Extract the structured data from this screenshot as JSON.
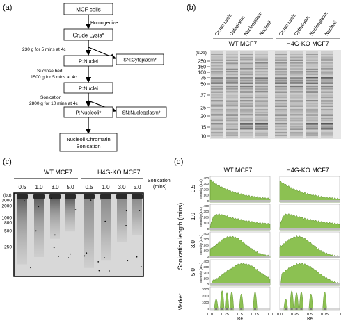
{
  "panel_a": {
    "label": "(a)",
    "boxes": {
      "mcf": "MCF cells",
      "crude": "Crude Lysis*",
      "nuclei1": "P:Nuclei",
      "cytoplasm": "SN:Cytoplasm*",
      "nuclei2": "P:Nuclei",
      "nucleoli": "P:Nucleoli*",
      "nucleoplasm": "SN:Nucleoplasm*",
      "chromatin_line1": "Nucleoli Chromatin",
      "chromatin_line2": "Sonication"
    },
    "steps": {
      "homogenize": "Homogenize",
      "spin1": "230 g for  5 mins at 4c",
      "sucrose": "Sucrose bed",
      "spin2": "1500 g for 5 mins at 4c",
      "sonication": "Sonication",
      "spin3": "2800 g for 10 mins at 4c"
    }
  },
  "panel_b": {
    "label": "(b)",
    "lanes": [
      "Crude Lysis",
      "Cytoplasm",
      "Nucleoplasm",
      "Nucleoli",
      "Crude Lysis",
      "Cytoplasm",
      "Nucleoplasm",
      "Nucleoli"
    ],
    "group_wt": "WT MCF7",
    "group_ko": "H4G-KO MCF7",
    "kda_label": "(kDa)",
    "markers": [
      "250",
      "150",
      "100",
      "75",
      "50",
      "37",
      "25",
      "20",
      "15",
      "10"
    ]
  },
  "panel_c": {
    "label": "(c)",
    "group_wt": "WT MCF7",
    "group_ko": "H4G-KO MCF7",
    "sonication_label": "Sonication",
    "sonication_unit": "(mins)",
    "times": [
      "0.5",
      "1.0",
      "3.0",
      "5.0",
      "0.5",
      "1.0",
      "3.0",
      "5.0"
    ],
    "bp_label": "(bp)",
    "bp_markers": [
      "3000",
      "2000",
      "1000",
      "800",
      "500",
      "250"
    ]
  },
  "panel_d": {
    "label": "(d)",
    "group_wt": "WT MCF7",
    "group_ko": "H4G-KO MCF7",
    "ylabel": "Sonication length (mins)",
    "intensity_label": "Intensity (a.u.)",
    "row_labels": [
      "0.5",
      "1.0",
      "3.0",
      "5.0"
    ],
    "marker_label": "Marker",
    "xlabel": "Re",
    "xticks": [
      "0.0",
      "0.25",
      "0.5",
      "0.75",
      "1.0"
    ],
    "yticks": [
      "400",
      "300",
      "200",
      "100",
      "0"
    ],
    "marker_yticks": [
      "3000",
      "2000",
      "1000",
      "0"
    ],
    "fill_color": "#8cc152"
  }
}
